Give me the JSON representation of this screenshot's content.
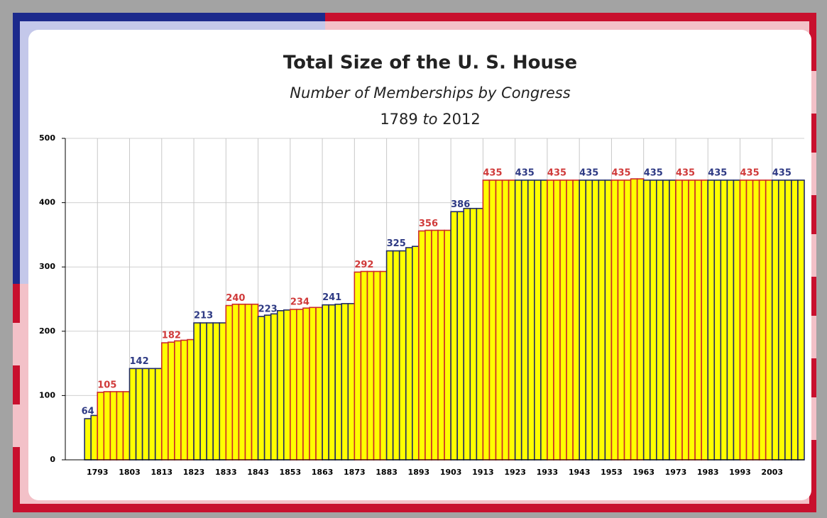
{
  "chart_data": {
    "type": "bar",
    "title": "Total Size of the U. S. House",
    "subtitle": "Number of Memberships by Congress",
    "period": {
      "from": "1789",
      "joiner": "to",
      "to": "2012"
    },
    "categories": [
      null,
      null,
      1793,
      null,
      null,
      null,
      null,
      1803,
      null,
      null,
      null,
      null,
      1813,
      null,
      null,
      null,
      null,
      1823,
      null,
      null,
      null,
      null,
      1833,
      null,
      null,
      null,
      null,
      1843,
      null,
      null,
      null,
      null,
      1853,
      null,
      null,
      null,
      null,
      1863,
      null,
      null,
      null,
      null,
      1873,
      null,
      null,
      null,
      null,
      1883,
      null,
      null,
      null,
      null,
      1893,
      null,
      null,
      null,
      null,
      1903,
      null,
      null,
      null,
      null,
      1913,
      null,
      null,
      null,
      null,
      1923,
      null,
      null,
      null,
      null,
      1933,
      null,
      null,
      null,
      null,
      1943,
      null,
      null,
      null,
      null,
      1953,
      null,
      null,
      null,
      null,
      1963,
      null,
      null,
      null,
      null,
      1973,
      null,
      null,
      null,
      null,
      1983,
      null,
      null,
      null,
      null,
      1993,
      null,
      null,
      null,
      null,
      2003,
      null,
      null,
      null,
      null
    ],
    "values": [
      64,
      69,
      105,
      106,
      106,
      106,
      106,
      142,
      142,
      142,
      142,
      142,
      182,
      183,
      185,
      186,
      187,
      213,
      213,
      213,
      213,
      213,
      240,
      242,
      242,
      242,
      242,
      223,
      225,
      227,
      232,
      233,
      234,
      234,
      236,
      237,
      237,
      241,
      241,
      242,
      243,
      243,
      292,
      293,
      293,
      293,
      293,
      325,
      325,
      325,
      330,
      332,
      356,
      357,
      357,
      357,
      357,
      386,
      386,
      391,
      391,
      391,
      435,
      435,
      435,
      435,
      435,
      435,
      435,
      435,
      435,
      435,
      435,
      435,
      435,
      435,
      435,
      435,
      435,
      435,
      435,
      435,
      435,
      435,
      435,
      437,
      437,
      435,
      435,
      435,
      435,
      435,
      435,
      435,
      435,
      435,
      435,
      435,
      435,
      435,
      435,
      435,
      435,
      435,
      435,
      435,
      435,
      435,
      435,
      435,
      435,
      435
    ],
    "fill_color": "#ffff00",
    "group_colors": [
      "#1f2a66",
      "#cc2a2a"
    ],
    "label_colors": [
      "#2e3a84",
      "#d03a3a"
    ],
    "ylim": [
      0,
      500
    ],
    "yticks": [
      0,
      100,
      200,
      300,
      400,
      500
    ],
    "grid": true
  }
}
